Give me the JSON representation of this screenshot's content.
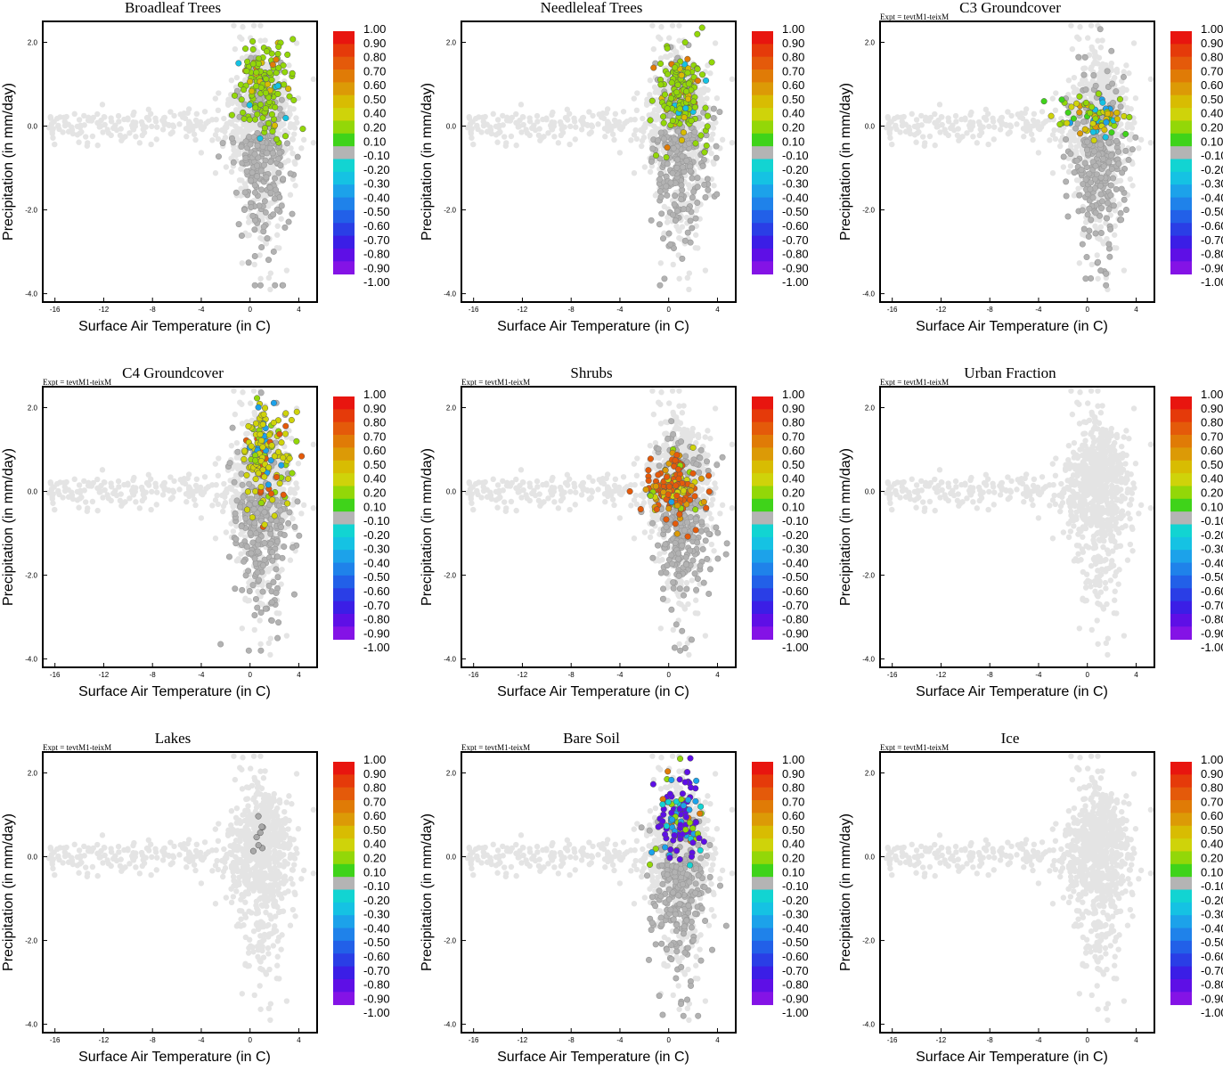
{
  "figure": {
    "expt_label": "Expt = tevtM1-teixM",
    "xlabel": "Surface Air Temperature (in C)",
    "ylabel": "Precipitation (in mm/day)"
  },
  "chart_data": [
    {
      "type": "scatter",
      "title": "Broadleaf Trees",
      "expt": "Expt = tevtM1-teixM",
      "xlabel": "Surface Air Temperature (in C)",
      "ylabel": "Precipitation (in mm/day)",
      "xlim": [
        -17,
        5.5
      ],
      "ylim": [
        -4.2,
        2.5
      ],
      "xticks": [
        "-16",
        "-12",
        "-8",
        "-4",
        "0",
        "4"
      ],
      "yticks": [
        "-4.0",
        "-2.0",
        "0.0",
        "2.0"
      ],
      "show_expt": false,
      "highlight": {
        "profile": "broadleaf",
        "x_center": 1.2,
        "y_center": 0.9,
        "x_spread": 1.4,
        "y_spread": 0.8,
        "count": 140,
        "dominant": 0.2
      }
    },
    {
      "type": "scatter",
      "title": "Needleleaf Trees",
      "expt": "Expt = tevtM1-teixM",
      "xlabel": "Surface Air Temperature (in C)",
      "ylabel": "Precipitation (in mm/day)",
      "xlim": [
        -17,
        5.5
      ],
      "ylim": [
        -4.2,
        2.5
      ],
      "xticks": [
        "-16",
        "-12",
        "-8",
        "-4",
        "0",
        "4"
      ],
      "yticks": [
        "-4.0",
        "-2.0",
        "0.0",
        "2.0"
      ],
      "show_expt": false,
      "highlight": {
        "profile": "needleleaf",
        "x_center": 1.0,
        "y_center": 0.8,
        "x_spread": 1.3,
        "y_spread": 0.8,
        "count": 150,
        "dominant": 0.2
      }
    },
    {
      "type": "scatter",
      "title": "C3 Groundcover",
      "expt": "Expt = tevtM1-teixM",
      "xlabel": "Surface Air Temperature (in C)",
      "ylabel": "Precipitation (in mm/day)",
      "xlim": [
        -17,
        5.5
      ],
      "ylim": [
        -4.2,
        2.5
      ],
      "xticks": [
        "-16",
        "-12",
        "-8",
        "-4",
        "0",
        "4"
      ],
      "yticks": [
        "-4.0",
        "-2.0",
        "0.0",
        "2.0"
      ],
      "show_expt": true,
      "highlight": {
        "profile": "c3",
        "x_center": 0.5,
        "y_center": 0.2,
        "x_spread": 2.2,
        "y_spread": 0.35,
        "count": 80,
        "dominant": 0.3
      }
    },
    {
      "type": "scatter",
      "title": "C4 Groundcover",
      "expt": "Expt = tevtM1-teixM",
      "xlabel": "Surface Air Temperature (in C)",
      "ylabel": "Precipitation (in mm/day)",
      "xlim": [
        -17,
        5.5
      ],
      "ylim": [
        -4.2,
        2.5
      ],
      "xticks": [
        "-16",
        "-12",
        "-8",
        "-4",
        "0",
        "4"
      ],
      "yticks": [
        "-4.0",
        "-2.0",
        "0.0",
        "2.0"
      ],
      "show_expt": true,
      "highlight": {
        "profile": "c4",
        "x_center": 1.3,
        "y_center": 0.9,
        "x_spread": 1.4,
        "y_spread": 0.9,
        "count": 150,
        "dominant": 0.4
      }
    },
    {
      "type": "scatter",
      "title": "Shrubs",
      "expt": "Expt = tevtM1-teixM",
      "xlabel": "Surface Air Temperature (in C)",
      "ylabel": "Precipitation (in mm/day)",
      "xlim": [
        -17,
        5.5
      ],
      "ylim": [
        -4.2,
        2.5
      ],
      "xticks": [
        "-16",
        "-12",
        "-8",
        "-4",
        "0",
        "4"
      ],
      "yticks": [
        "-4.0",
        "-2.0",
        "0.0",
        "2.0"
      ],
      "show_expt": true,
      "highlight": {
        "profile": "shrubs",
        "x_center": 0.3,
        "y_center": 0.1,
        "x_spread": 1.6,
        "y_spread": 0.5,
        "count": 170,
        "dominant": 0.8
      }
    },
    {
      "type": "scatter",
      "title": "Urban Fraction",
      "expt": "Expt = tevtM1-teixM",
      "xlabel": "Surface Air Temperature (in C)",
      "ylabel": "Precipitation (in mm/day)",
      "xlim": [
        -17,
        5.5
      ],
      "ylim": [
        -4.2,
        2.5
      ],
      "xticks": [
        "-16",
        "-12",
        "-8",
        "-4",
        "0",
        "4"
      ],
      "yticks": [
        "-4.0",
        "-2.0",
        "0.0",
        "2.0"
      ],
      "show_expt": true,
      "highlight": {
        "profile": "none",
        "count": 0
      }
    },
    {
      "type": "scatter",
      "title": "Lakes",
      "expt": "Expt = tevtM1-teixM",
      "xlabel": "Surface Air Temperature (in C)",
      "ylabel": "Precipitation (in mm/day)",
      "xlim": [
        -17,
        5.5
      ],
      "ylim": [
        -4.2,
        2.5
      ],
      "xticks": [
        "-16",
        "-12",
        "-8",
        "-4",
        "0",
        "4"
      ],
      "yticks": [
        "-4.0",
        "-2.0",
        "0.0",
        "2.0"
      ],
      "show_expt": true,
      "highlight": {
        "profile": "lakes",
        "x_center": 1.0,
        "y_center": 0.5,
        "x_spread": 1.0,
        "y_spread": 0.8,
        "count": 8,
        "dominant": -0.1
      }
    },
    {
      "type": "scatter",
      "title": "Bare Soil",
      "expt": "Expt = tevtM1-teixM",
      "xlabel": "Surface Air Temperature (in C)",
      "ylabel": "Precipitation (in mm/day)",
      "xlim": [
        -17,
        5.5
      ],
      "ylim": [
        -4.2,
        2.5
      ],
      "xticks": [
        "-16",
        "-12",
        "-8",
        "-4",
        "0",
        "4"
      ],
      "yticks": [
        "-4.0",
        "-2.0",
        "0.0",
        "2.0"
      ],
      "show_expt": true,
      "highlight": {
        "profile": "baresoil",
        "x_center": 1.0,
        "y_center": 0.9,
        "x_spread": 1.4,
        "y_spread": 0.8,
        "count": 120,
        "dominant": -0.9
      }
    },
    {
      "type": "scatter",
      "title": "Ice",
      "expt": "Expt = tevtM1-teixM",
      "xlabel": "Surface Air Temperature (in C)",
      "ylabel": "Precipitation (in mm/day)",
      "xlim": [
        -17,
        5.5
      ],
      "ylim": [
        -4.2,
        2.5
      ],
      "xticks": [
        "-16",
        "-12",
        "-8",
        "-4",
        "0",
        "4"
      ],
      "yticks": [
        "-4.0",
        "-2.0",
        "0.0",
        "2.0"
      ],
      "show_expt": true,
      "highlight": {
        "profile": "none",
        "count": 0
      }
    }
  ],
  "colorbar": {
    "labels": [
      "1.00",
      "0.90",
      "0.80",
      "0.70",
      "0.60",
      "0.50",
      "0.40",
      "0.20",
      "0.10",
      "-0.10",
      "-0.20",
      "-0.30",
      "-0.40",
      "-0.50",
      "-0.60",
      "-0.70",
      "-0.80",
      "-0.90",
      "-1.00"
    ],
    "colors": [
      "#e8150f",
      "#e53a0a",
      "#e45a0a",
      "#e07b06",
      "#dc9a06",
      "#d8bc02",
      "#cfd30a",
      "#93d708",
      "#3fd31a",
      "#b4b4b4",
      "#12d4d2",
      "#15c2e3",
      "#1ca2ea",
      "#1f82ea",
      "#2260e8",
      "#2a3ee6",
      "#3b1ee6",
      "#5e0fe6",
      "#8413e6"
    ]
  },
  "background_colors": {
    "light": "#e4e4e4",
    "dark": "#b2b2b2"
  }
}
